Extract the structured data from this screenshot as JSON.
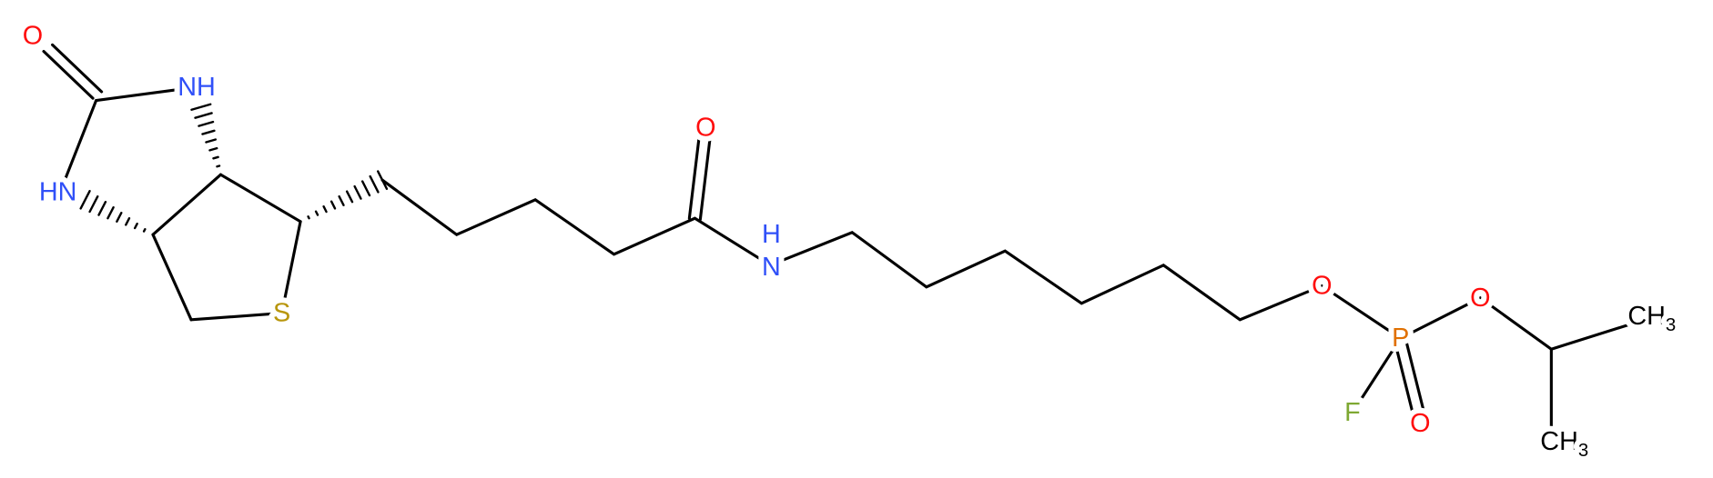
{
  "atoms": [
    {
      "label": "O"
    },
    {
      "label": "NH"
    },
    {
      "label": "HN"
    },
    {
      "label": "S"
    },
    {
      "label": "O"
    },
    {
      "label": "H"
    },
    {
      "label": "N"
    },
    {
      "label": "O"
    },
    {
      "label": "P"
    },
    {
      "label": "O"
    },
    {
      "label": "F"
    },
    {
      "label": "O"
    },
    {
      "label": "CH",
      "subscript": "3"
    },
    {
      "label": "CH",
      "subscript": "3"
    }
  ]
}
